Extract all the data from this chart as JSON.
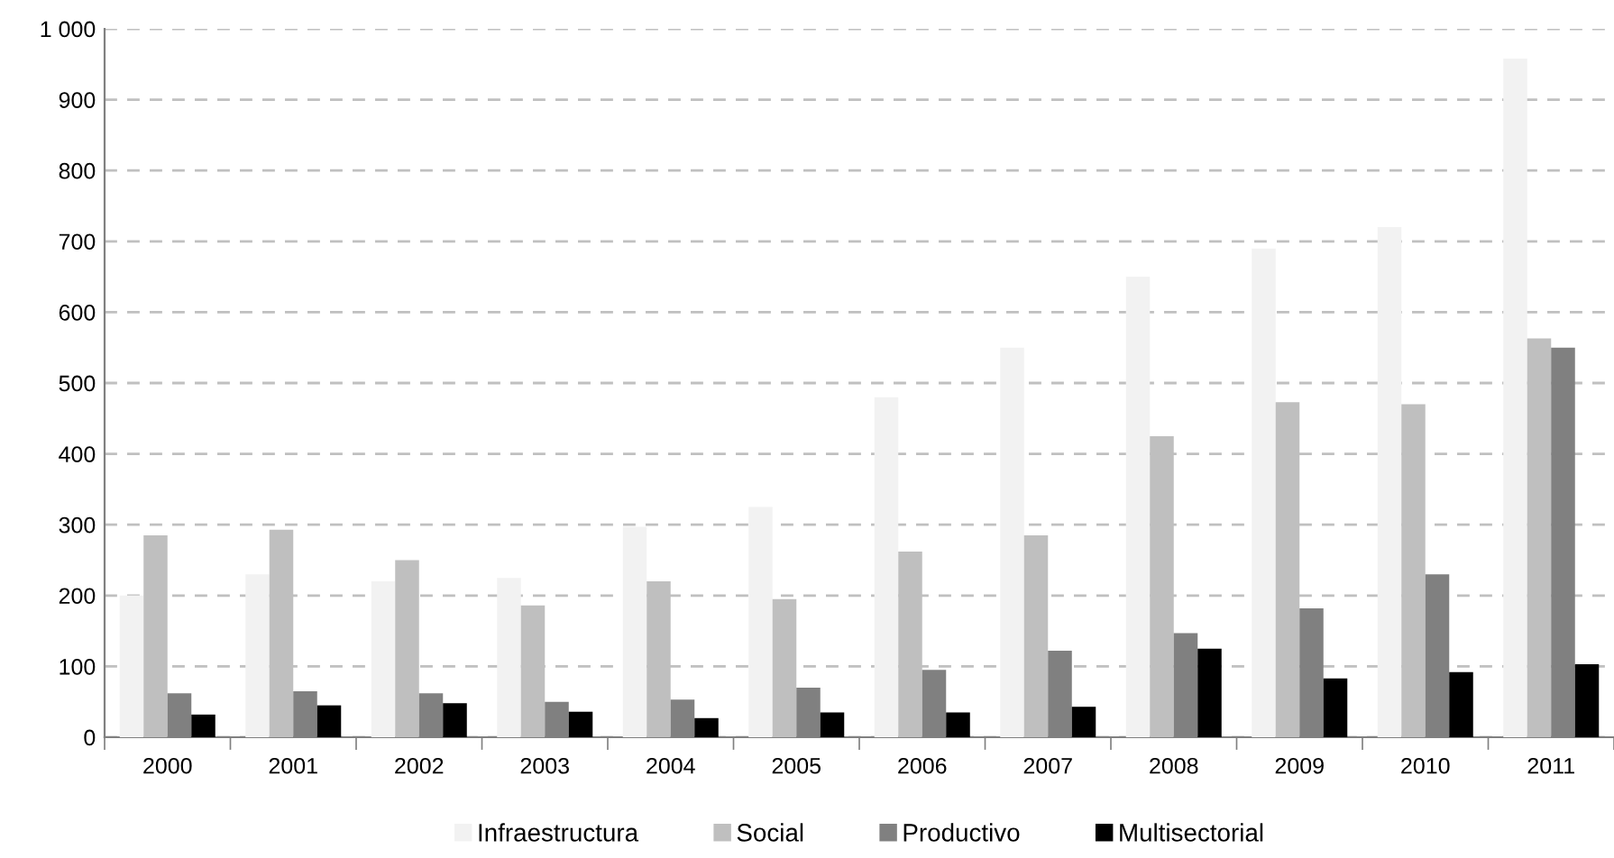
{
  "chart_data": {
    "type": "bar",
    "categories": [
      "2000",
      "2001",
      "2002",
      "2003",
      "2004",
      "2005",
      "2006",
      "2007",
      "2008",
      "2009",
      "2010",
      "2011"
    ],
    "series": [
      {
        "name": "Infraestructura",
        "color": "#f2f2f2",
        "values": [
          200,
          230,
          220,
          225,
          297,
          325,
          480,
          550,
          650,
          690,
          720,
          958
        ]
      },
      {
        "name": "Social",
        "color": "#bfbfbf",
        "values": [
          285,
          293,
          250,
          186,
          220,
          195,
          262,
          285,
          425,
          473,
          470,
          563
        ]
      },
      {
        "name": "Productivo",
        "color": "#808080",
        "values": [
          62,
          65,
          62,
          50,
          53,
          70,
          95,
          122,
          147,
          182,
          230,
          550
        ]
      },
      {
        "name": "Multisectorial",
        "color": "#000000",
        "values": [
          32,
          45,
          48,
          36,
          27,
          35,
          35,
          43,
          125,
          83,
          92,
          103
        ]
      }
    ],
    "ylim": [
      0,
      1000
    ],
    "yticks": [
      0,
      100,
      200,
      300,
      400,
      500,
      600,
      700,
      800,
      900,
      {
        "value": 1000,
        "label": "1 000"
      }
    ],
    "grid": "y",
    "legend": "bottom"
  }
}
